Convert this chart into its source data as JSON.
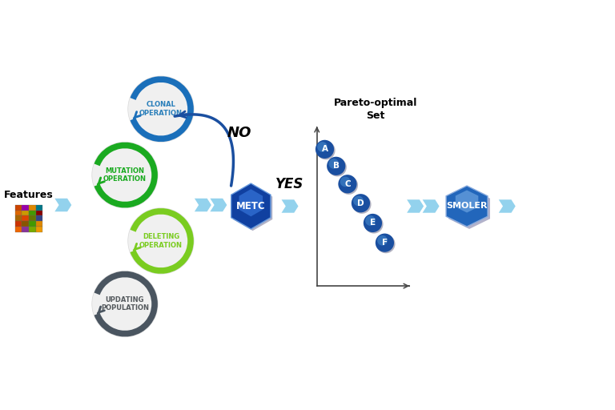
{
  "background_color": "white",
  "features_label": "Features",
  "operations": [
    {
      "label": "CLONAL\nOPERATION",
      "color": "#1a6fba",
      "text_color": "#2a7fba"
    },
    {
      "label": "MUTATION\nOPERATION",
      "color": "#1aaa20",
      "text_color": "#1aaa20"
    },
    {
      "label": "DELETING\nOPERATION",
      "color": "#7acc20",
      "text_color": "#7acc20"
    },
    {
      "label": "UPDATING\nPOPULATION",
      "color": "#4a5560",
      "text_color": "#555a5e"
    }
  ],
  "metc_label": "METC",
  "smoler_label": "SMOLER",
  "pareto_title": "Pareto-optimal\nSet",
  "pareto_points": [
    "A",
    "B",
    "C",
    "D",
    "E",
    "F"
  ],
  "chevron_color": "#87ceeb",
  "no_arrow_color": "#1a4fa0",
  "yes_label": "YES",
  "no_label": "NO",
  "metc_color": "#2060c0",
  "smoler_color": "#5599dd",
  "pareto_circle_color": "#1a5fb0",
  "grid_colors": [
    [
      "#cc4400",
      "#9900aa",
      "#dd8800",
      "#007788"
    ],
    [
      "#dd6600",
      "#cc9900",
      "#449900",
      "#880000"
    ],
    [
      "#aa6600",
      "#dd4400",
      "#667700",
      "#334488"
    ],
    [
      "#cc3300",
      "#885500",
      "#449900",
      "#dd8800"
    ],
    [
      "#ee6600",
      "#883399",
      "#77aa00",
      "#ee9900"
    ]
  ]
}
